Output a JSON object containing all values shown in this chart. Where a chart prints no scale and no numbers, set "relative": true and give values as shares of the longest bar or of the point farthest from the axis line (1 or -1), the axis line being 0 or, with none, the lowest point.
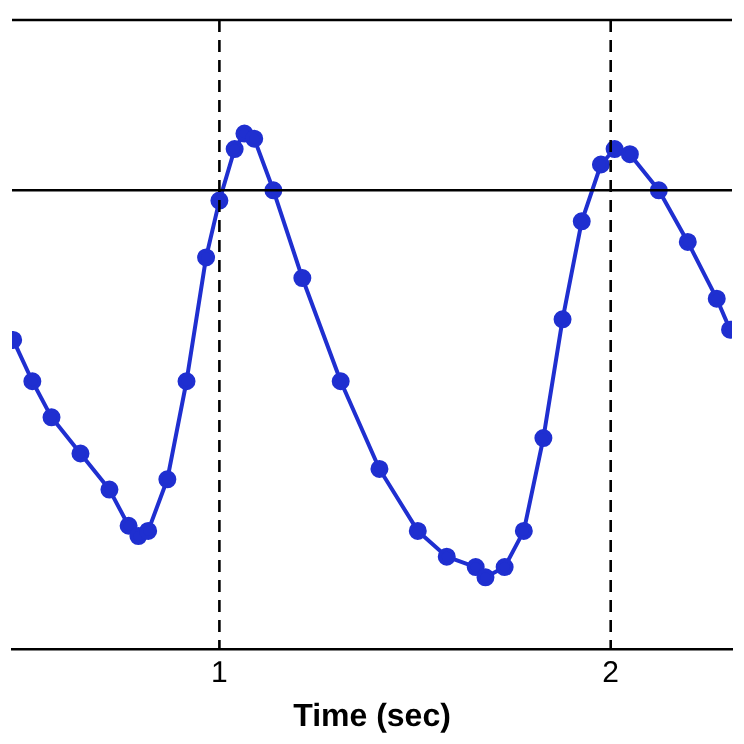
{
  "chart_data": {
    "type": "line",
    "xlabel": "Time (sec)",
    "relative": true,
    "xlim": [
      0.47,
      2.31
    ],
    "xticks": [
      1,
      2
    ],
    "marker": "circle",
    "line_style": "solid",
    "legend": false,
    "grid": false,
    "series": [
      {
        "color": "#1f2fd0",
        "x": [
          0.473,
          0.522,
          0.571,
          0.645,
          0.719,
          0.768,
          0.793,
          0.818,
          0.867,
          0.916,
          0.966,
          1.0,
          1.039,
          1.064,
          1.089,
          1.138,
          1.212,
          1.31,
          1.409,
          1.507,
          1.581,
          1.655,
          1.68,
          1.729,
          1.778,
          1.828,
          1.877,
          1.926,
          1.975,
          2.01,
          2.049,
          2.123,
          2.197,
          2.271,
          2.305
        ],
        "values": [
          0.6,
          0.52,
          0.45,
          0.38,
          0.31,
          0.24,
          0.22,
          0.23,
          0.33,
          0.52,
          0.76,
          0.87,
          0.97,
          1.0,
          0.99,
          0.89,
          0.72,
          0.52,
          0.35,
          0.23,
          0.18,
          0.16,
          0.14,
          0.16,
          0.23,
          0.41,
          0.64,
          0.83,
          0.94,
          0.97,
          0.96,
          0.89,
          0.79,
          0.68,
          0.62
        ]
      }
    ],
    "ref_lines": [
      {
        "axis": "x",
        "value": 1,
        "line_style": "dashed",
        "color": "#000000"
      },
      {
        "axis": "x",
        "value": 2,
        "line_style": "dashed",
        "color": "#000000"
      },
      {
        "axis": "y",
        "value": 0.89,
        "line_style": "solid",
        "color": "#000000"
      }
    ]
  }
}
